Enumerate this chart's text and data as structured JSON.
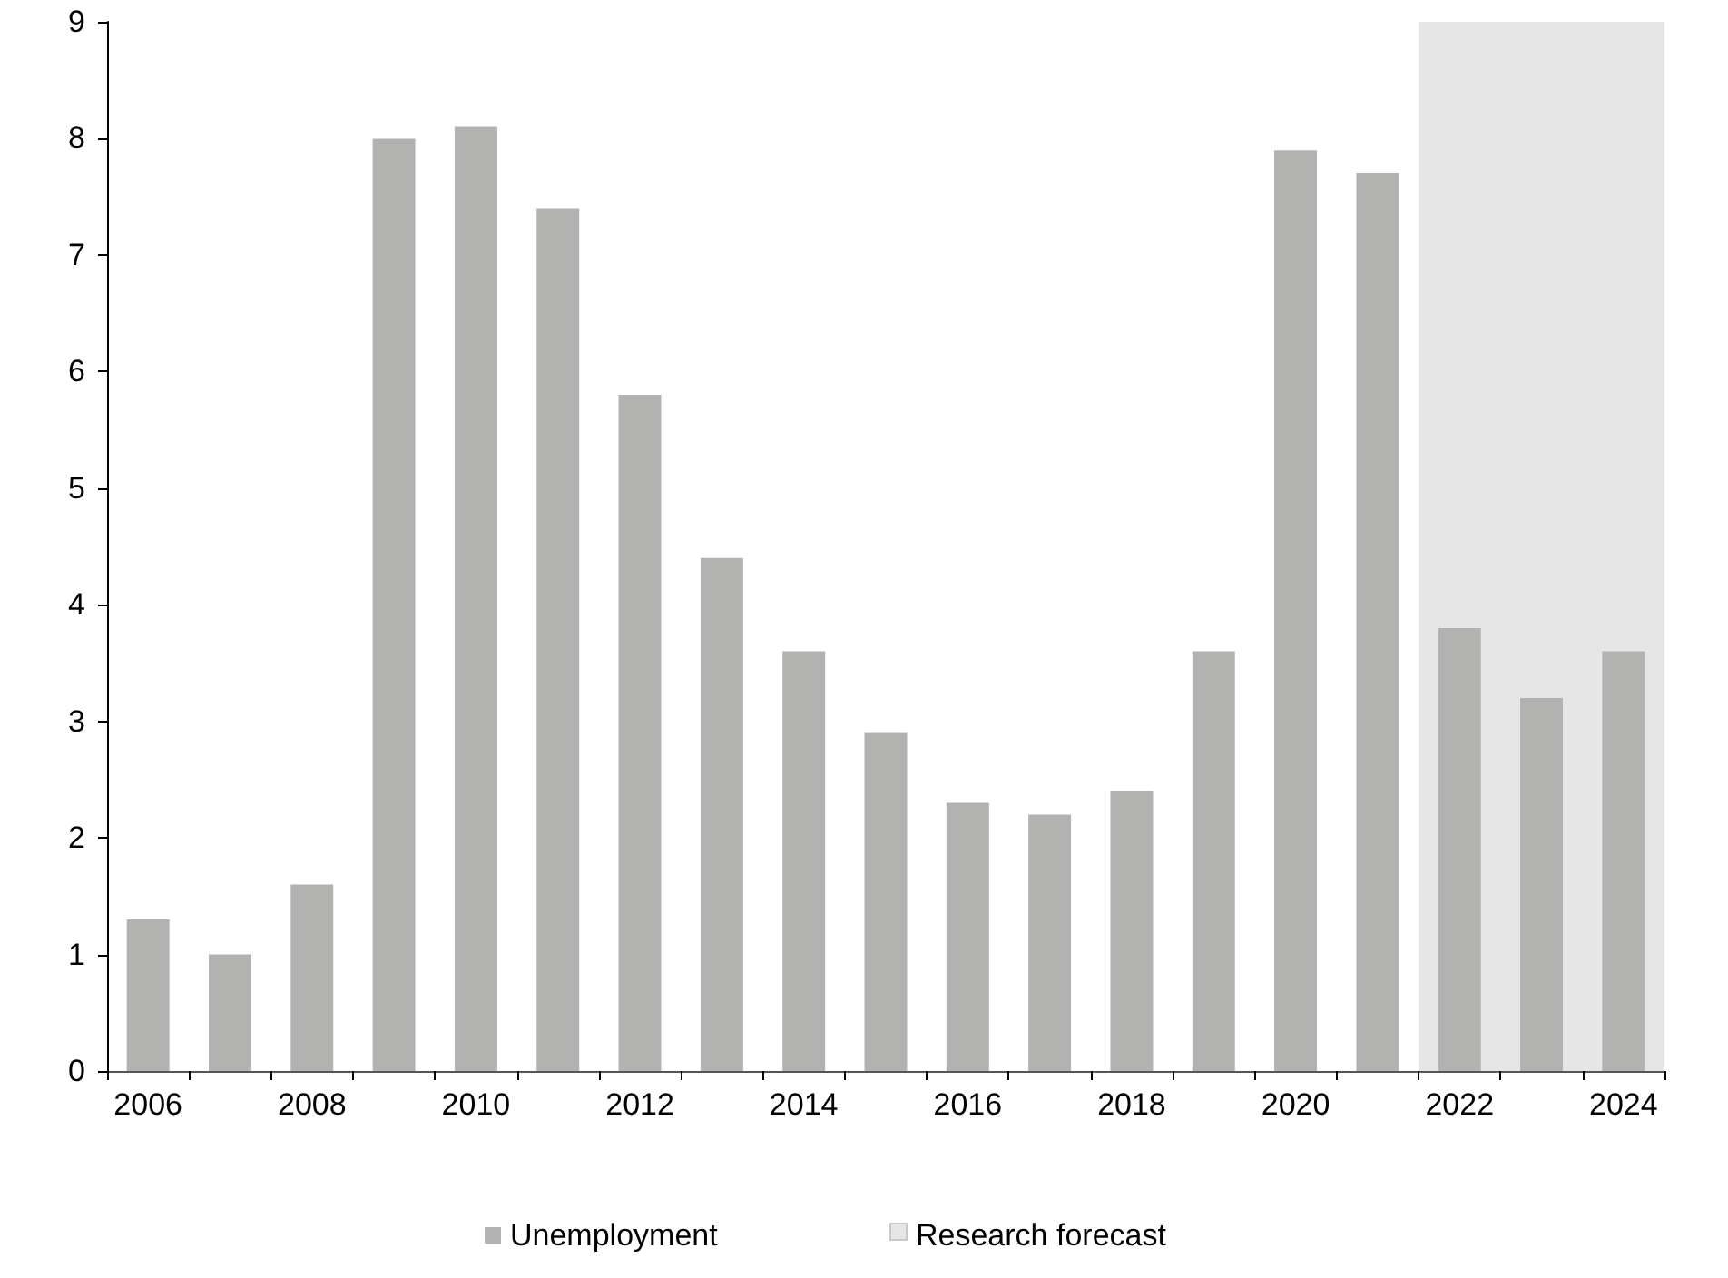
{
  "chart_data": {
    "type": "bar",
    "categories": [
      "2006",
      null,
      "2008",
      null,
      "2010",
      null,
      "2012",
      null,
      "2014",
      null,
      "2016",
      null,
      "2018",
      null,
      "2020",
      null,
      "2022",
      null,
      "2024"
    ],
    "series": [
      {
        "name": "Unemployment",
        "color": "#b2b3b1",
        "values": [
          1.3,
          1.0,
          1.6,
          8.0,
          8.1,
          7.4,
          5.8,
          4.4,
          3.6,
          2.9,
          2.3,
          2.2,
          2.4,
          3.6,
          7.9,
          7.7,
          3.8,
          3.2,
          3.6
        ]
      }
    ],
    "ylim": [
      0,
      9
    ],
    "yticks": [
      0,
      1,
      2,
      3,
      4,
      5,
      6,
      7,
      8,
      9
    ],
    "bands": [
      {
        "axis": "x",
        "from": "2022",
        "to": "2024",
        "label": "Research forecast",
        "color": "#e6e6e6"
      }
    ],
    "grid": false,
    "legend": "bottom"
  }
}
